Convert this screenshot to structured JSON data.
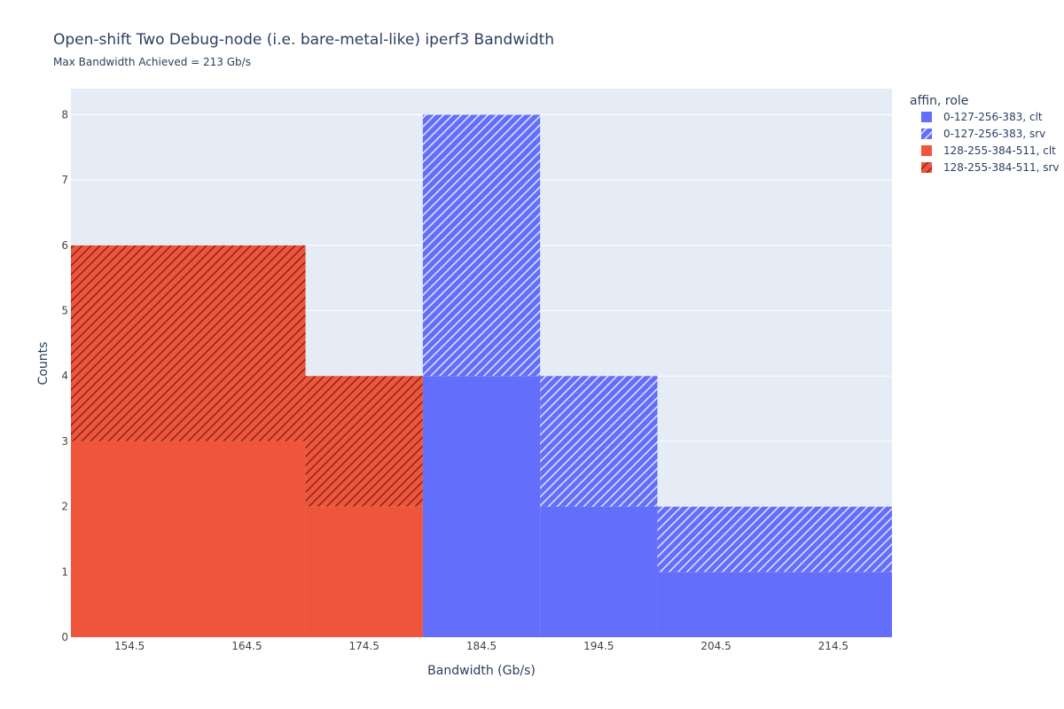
{
  "chart_data": {
    "type": "bar",
    "barmode": "stack",
    "title": "Open-shift Two Debug-node (i.e. bare-metal-like) iperf3 Bandwidth",
    "subtitle": "Max Bandwidth Achieved = 213 Gb/s",
    "xlabel": "Bandwidth (Gb/s)",
    "ylabel": "Counts",
    "x_edges": [
      149.5,
      169.5,
      179.5,
      189.5,
      199.5,
      219.5
    ],
    "x_ticks": [
      154.5,
      164.5,
      174.5,
      184.5,
      194.5,
      204.5,
      214.5
    ],
    "x_tick_labels": [
      "154.5",
      "164.5",
      "174.5",
      "184.5",
      "194.5",
      "204.5",
      "214.5"
    ],
    "xlim": [
      149.5,
      219.5
    ],
    "y_ticks": [
      0,
      1,
      2,
      3,
      4,
      5,
      6,
      7,
      8
    ],
    "ylim": [
      0,
      8.4
    ],
    "grid": true,
    "legend_title": "affin, role",
    "legend_position": "top-right",
    "series": [
      {
        "name": "0-127-256-383, clt",
        "color": "#636efa",
        "pattern": "none",
        "values": [
          0,
          0,
          4,
          2,
          1
        ]
      },
      {
        "name": "0-127-256-383, srv",
        "color": "#636efa",
        "pattern": "hatch",
        "values": [
          0,
          0,
          4,
          2,
          1
        ]
      },
      {
        "name": "128-255-384-511, clt",
        "color": "#ef553b",
        "pattern": "none",
        "values": [
          3,
          2,
          0,
          0,
          0
        ]
      },
      {
        "name": "128-255-384-511, srv",
        "color": "#ef553b",
        "pattern": "hatch",
        "values": [
          3,
          2,
          0,
          0,
          0
        ]
      }
    ]
  }
}
